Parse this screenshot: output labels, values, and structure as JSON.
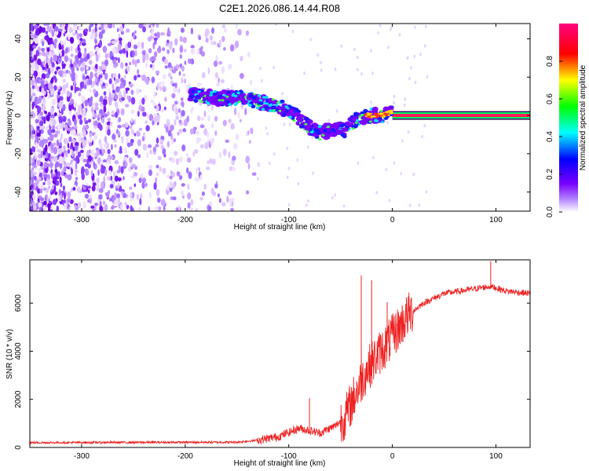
{
  "figure": {
    "title": "C2E1.2026.086.14.44.R08"
  },
  "chart_data": [
    {
      "type": "heatmap",
      "xlabel": "Height of straight line (km)",
      "ylabel": "Frequency (Hz)",
      "xlim": [
        -350,
        133
      ],
      "ylim": [
        -50,
        48
      ],
      "xticks": [
        -300,
        -200,
        -100,
        0,
        100
      ],
      "yticks": [
        -40,
        -20,
        0,
        20,
        40
      ],
      "colorbar": {
        "label": "Normalized spectral amplitude",
        "range": [
          0,
          1
        ],
        "ticks": [
          "0.0",
          "0.2",
          "0.4",
          "0.6",
          "0.8"
        ],
        "colors": [
          "#ffffff",
          "#7a00ff",
          "#0000ff",
          "#00ffff",
          "#00ff00",
          "#ffff00",
          "#ff0000",
          "#ff0080"
        ]
      },
      "tone": {
        "points": [
          {
            "x": -195,
            "y": 11
          },
          {
            "x": -170,
            "y": 9
          },
          {
            "x": -140,
            "y": 9
          },
          {
            "x": -120,
            "y": 6
          },
          {
            "x": -100,
            "y": 3
          },
          {
            "x": -85,
            "y": -4
          },
          {
            "x": -70,
            "y": -9
          },
          {
            "x": -55,
            "y": -7
          },
          {
            "x": -45,
            "y": -8
          },
          {
            "x": -35,
            "y": -2
          },
          {
            "x": -25,
            "y": 0
          },
          {
            "x": -10,
            "y": 0
          },
          {
            "x": 0,
            "y": 2
          },
          {
            "x": 5,
            "y": 0
          },
          {
            "x": 133,
            "y": 0
          }
        ],
        "carrier_start_x": 0
      },
      "noise_extent_x": [
        -350,
        -133
      ]
    },
    {
      "type": "line",
      "xlabel": "Height of straight line (km)",
      "ylabel": "SNR (10 * v/v)",
      "xlim": [
        -350,
        133
      ],
      "ylim": [
        0,
        7800
      ],
      "xticks": [
        -300,
        -200,
        -100,
        0,
        100
      ],
      "yticks": [
        0,
        2000,
        4000,
        6000
      ],
      "color": "#ee2222",
      "profile": [
        {
          "x": -350,
          "y": 200
        },
        {
          "x": -150,
          "y": 220
        },
        {
          "x": -130,
          "y": 300
        },
        {
          "x": -110,
          "y": 450
        },
        {
          "x": -90,
          "y": 800
        },
        {
          "x": -70,
          "y": 600
        },
        {
          "x": -55,
          "y": 900
        },
        {
          "x": -45,
          "y": 1300
        },
        {
          "x": -35,
          "y": 2300
        },
        {
          "x": -25,
          "y": 3200
        },
        {
          "x": -15,
          "y": 3800
        },
        {
          "x": -5,
          "y": 4300
        },
        {
          "x": 5,
          "y": 4900
        },
        {
          "x": 15,
          "y": 5500
        },
        {
          "x": 30,
          "y": 6000
        },
        {
          "x": 50,
          "y": 6400
        },
        {
          "x": 80,
          "y": 6600
        },
        {
          "x": 95,
          "y": 6700
        },
        {
          "x": 110,
          "y": 6500
        },
        {
          "x": 133,
          "y": 6400
        }
      ],
      "spikes": [
        {
          "x": -30,
          "y": 7150
        },
        {
          "x": -20,
          "y": 6950
        },
        {
          "x": -5,
          "y": 6050
        },
        {
          "x": 10,
          "y": 5050
        },
        {
          "x": -80,
          "y": 2050
        },
        {
          "x": 95,
          "y": 7750
        }
      ]
    }
  ]
}
